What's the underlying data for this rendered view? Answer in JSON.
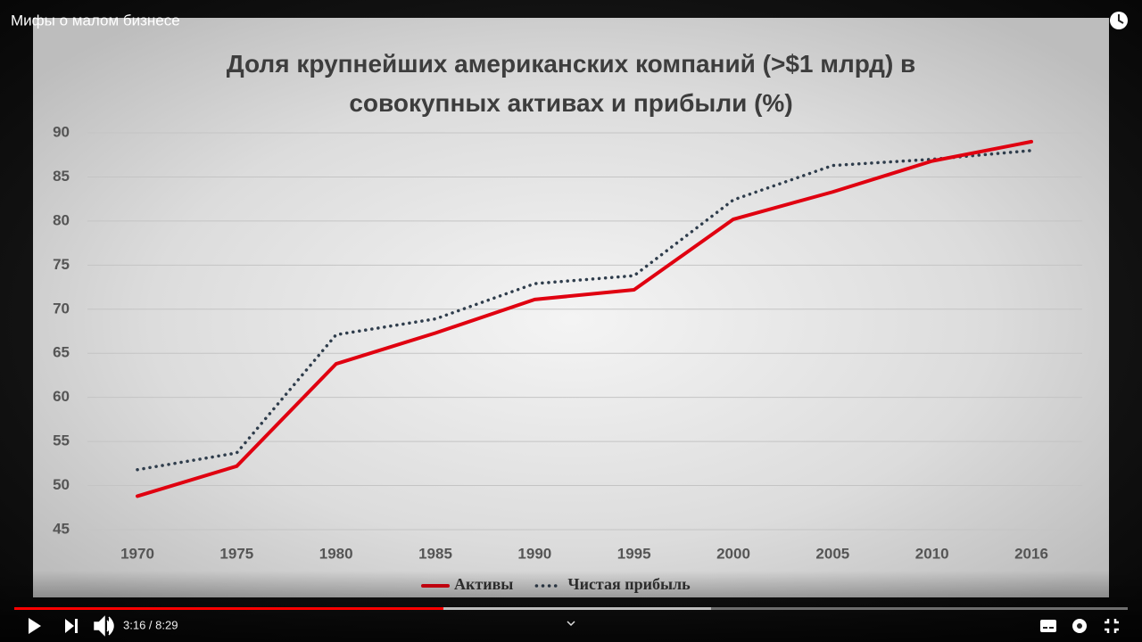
{
  "video": {
    "title": "Мифы о малом бизнесе",
    "time": "3:16 / 8:29"
  },
  "chart_data": {
    "type": "line",
    "title": "Доля крупнейших американских компаний (>$1 млрд) в совокупных активах и прибыли (%)",
    "categories": [
      "1970",
      "1975",
      "1980",
      "1985",
      "1990",
      "1995",
      "2000",
      "2005",
      "2010",
      "2016"
    ],
    "series": [
      {
        "name": "Активы",
        "color": "#e00010",
        "values": [
          48.8,
          52.2,
          63.8,
          67.3,
          71.1,
          72.2,
          80.2,
          83.3,
          86.8,
          89.0
        ]
      },
      {
        "name": "Чистая прибыль",
        "color": "#2f3d4c",
        "values": [
          51.8,
          53.7,
          67.1,
          68.9,
          72.9,
          73.8,
          82.4,
          86.3,
          87.0,
          88.0
        ]
      }
    ],
    "ylim": [
      45,
      90
    ],
    "yticks": [
      45,
      50,
      55,
      60,
      65,
      70,
      75,
      80,
      85,
      90
    ],
    "grid": true,
    "legend": "bottom"
  }
}
